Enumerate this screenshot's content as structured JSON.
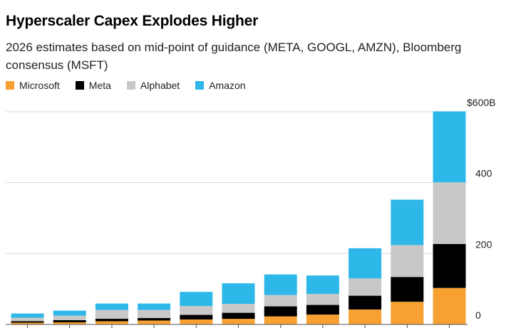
{
  "header": {
    "title": "Hyperscaler Capex Explodes Higher",
    "subtitle": "2026 estimates based on mid-point of guidance (META, GOOGL, AMZN), Bloomberg consensus (MSFT)"
  },
  "colors": {
    "Microsoft": "#f7a132",
    "Meta": "#000000",
    "Alphabet": "#c8c8c8",
    "Amazon": "#2eb8ea",
    "gridline": "#d9d9d9",
    "axis": "#555555"
  },
  "chart_data": {
    "type": "bar",
    "stacked": true,
    "title": "Hyperscaler Capex Explodes Higher",
    "subtitle": "2026 estimates based on mid-point of guidance (META, GOOGL, AMZN), Bloomberg consensus (MSFT)",
    "categories": [
      "",
      "",
      "",
      "",
      "",
      "",
      "",
      "",
      "",
      "",
      ""
    ],
    "series": [
      {
        "name": "Microsoft",
        "values": [
          5,
          6,
          9,
          11,
          14,
          16,
          23,
          28,
          42,
          64,
          103
        ]
      },
      {
        "name": "Meta",
        "values": [
          4,
          6,
          7,
          7,
          13,
          17,
          28,
          27,
          39,
          70,
          124
        ]
      },
      {
        "name": "Alphabet",
        "values": [
          10,
          13,
          25,
          23,
          25,
          25,
          32,
          31,
          49,
          90,
          174
        ]
      },
      {
        "name": "Amazon",
        "values": [
          12,
          14,
          18,
          18,
          40,
          58,
          58,
          52,
          85,
          128,
          200
        ]
      }
    ],
    "y_ticks": [
      {
        "value": 0,
        "label": "0"
      },
      {
        "value": 200,
        "label": "200"
      },
      {
        "value": 400,
        "label": "400"
      },
      {
        "value": 600,
        "label": "$600B"
      }
    ],
    "ylim": [
      0,
      600
    ],
    "grid": true,
    "legend": "top-left",
    "y_axis_position": "right"
  }
}
